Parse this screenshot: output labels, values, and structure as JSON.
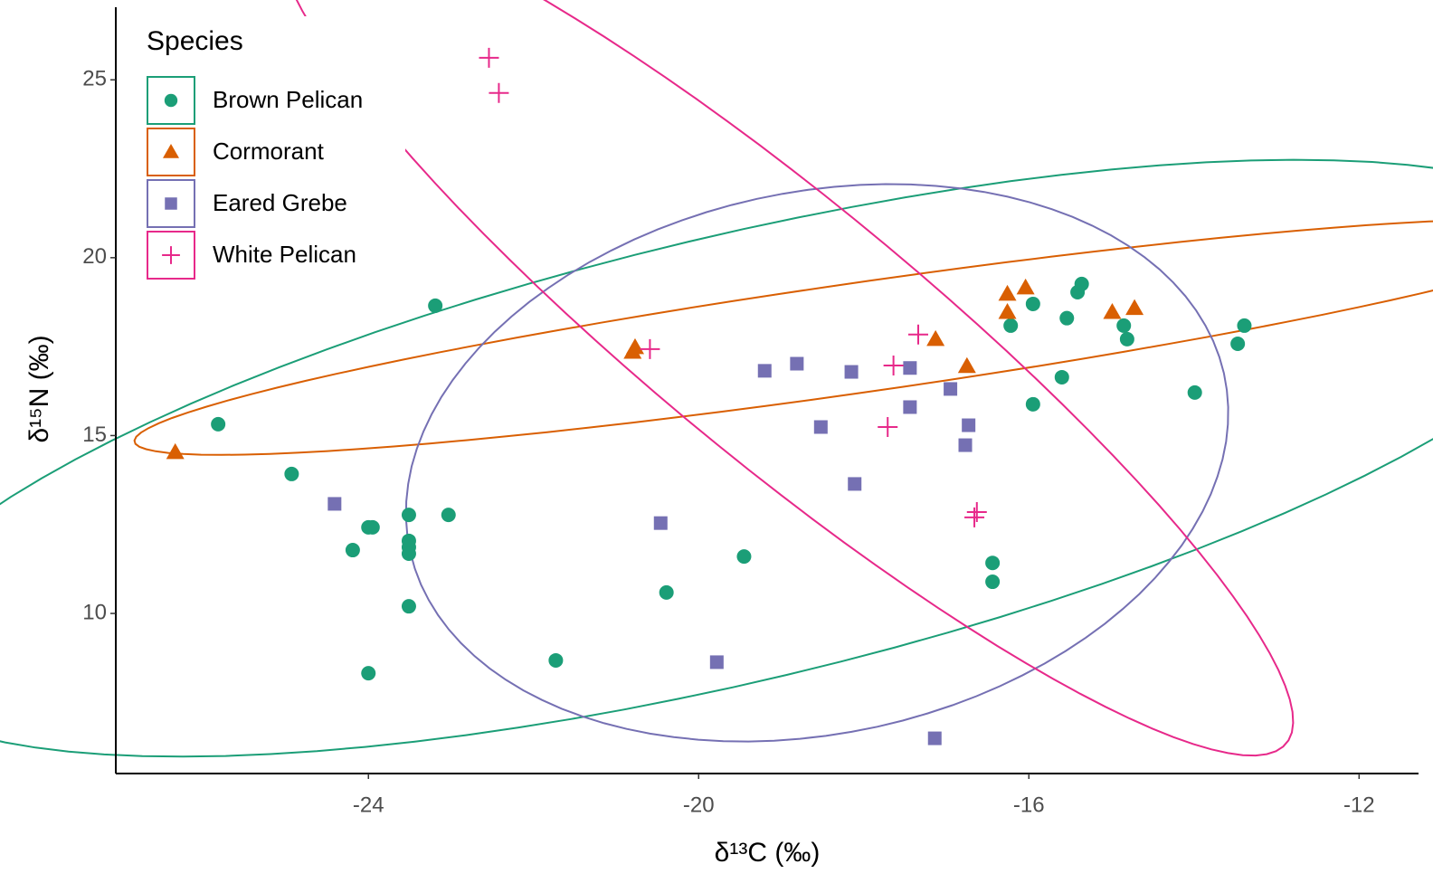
{
  "chart_data": {
    "type": "scatter",
    "x_label": "δ¹³C (‰)",
    "y_label": "δ¹⁵N (‰)",
    "xlim": [
      -27.06,
      -11.28
    ],
    "ylim": [
      5.5,
      27.04
    ],
    "xticks": [
      -24,
      -20,
      -16,
      -12
    ],
    "yticks": [
      10,
      15,
      20,
      25
    ],
    "grid": false,
    "ellipses": true,
    "legend_title": "Species",
    "legend_position": "top-left",
    "series": [
      {
        "name": "Brown Pelican",
        "color": "#1b9e77",
        "marker": "circle",
        "x": [
          -25.82,
          -24.93,
          -23.19,
          -24.19,
          -24,
          -23.95,
          -23.51,
          -23.51,
          -23.51,
          -23.51,
          -23.51,
          -23.03,
          -24,
          -21.73,
          -20.39,
          -19.45,
          -16.44,
          -16.44,
          -16.22,
          -15.95,
          -15.95,
          -15.54,
          -15.6,
          -15.41,
          -15.36,
          -14.85,
          -14.81,
          -13.99,
          -13.47,
          -13.39
        ],
        "values": [
          15.32,
          13.92,
          18.65,
          11.78,
          12.42,
          12.42,
          12.77,
          12.04,
          11.86,
          11.68,
          10.2,
          12.77,
          8.32,
          8.68,
          10.59,
          11.6,
          11.42,
          10.89,
          18.09,
          18.7,
          15.88,
          18.3,
          16.64,
          19.03,
          19.26,
          18.09,
          17.71,
          16.21,
          17.58,
          18.09
        ]
      },
      {
        "name": "Cormorant",
        "color": "#d95f02",
        "marker": "triangle",
        "x": [
          -26.34,
          -20.8,
          -20.77,
          -17.13,
          -16.75,
          -16.26,
          -16.04,
          -16.26,
          -14.99,
          -14.72
        ],
        "values": [
          14.53,
          17.35,
          17.48,
          17.71,
          16.95,
          18.98,
          19.16,
          18.47,
          18.47,
          18.58
        ]
      },
      {
        "name": "Eared Grebe",
        "color": "#7570b3",
        "marker": "square",
        "x": [
          -24.41,
          -20.46,
          -19.78,
          -19.2,
          -18.81,
          -18.52,
          -18.15,
          -18.11,
          -17.44,
          -17.44,
          -16.95,
          -16.73,
          -16.77,
          -17.14
        ],
        "values": [
          13.08,
          12.54,
          8.63,
          16.82,
          17.02,
          15.24,
          16.79,
          13.64,
          16.9,
          15.8,
          16.31,
          15.29,
          14.73,
          6.49
        ]
      },
      {
        "name": "White Pelican",
        "color": "#e7298a",
        "marker": "plus",
        "x": [
          -22.54,
          -22.42,
          -20.59,
          -17.71,
          -17.64,
          -17.34,
          -16.66,
          -16.63
        ],
        "values": [
          25.62,
          24.63,
          17.43,
          15.24,
          16.97,
          17.84,
          12.7,
          12.85
        ]
      }
    ]
  }
}
